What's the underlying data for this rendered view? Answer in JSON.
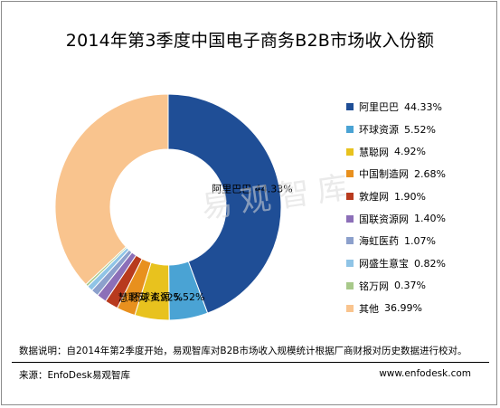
{
  "title": "2014年第3季度中国电子商务B2B市场收入份额",
  "watermark": "易观智库",
  "note": "数据说明：自2014年第2季度开始，易观智库对B2B市场收入规模统计根据厂商财报对历史数据进行校对。",
  "source": "来源：EnfoDesk易观智库",
  "website": "www.enfodesk.com",
  "chart_data": {
    "type": "pie",
    "donut": true,
    "legend_position": "right",
    "categories": [
      "阿里巴巴",
      "环球资源",
      "慧聪网",
      "中国制造网",
      "敦煌网",
      "国联资源网",
      "海虹医药",
      "网盛生意宝",
      "铭万网",
      "其他"
    ],
    "values": [
      44.33,
      5.52,
      4.92,
      2.68,
      1.9,
      1.4,
      1.07,
      0.82,
      0.37,
      36.99
    ],
    "value_labels": [
      "44.33%",
      "5.52%",
      "4.92%",
      "2.68%",
      "1.90%",
      "1.40%",
      "1.07%",
      "0.82%",
      "0.37%",
      "36.99%"
    ],
    "colors": [
      "#1f4e96",
      "#4aa3d4",
      "#e8c21e",
      "#e8901e",
      "#b83a1e",
      "#8c6fb8",
      "#8ca0cc",
      "#8fc4e6",
      "#a8c98a",
      "#f9c48e"
    ],
    "data_labels_shown": [
      0,
      1,
      2
    ]
  }
}
